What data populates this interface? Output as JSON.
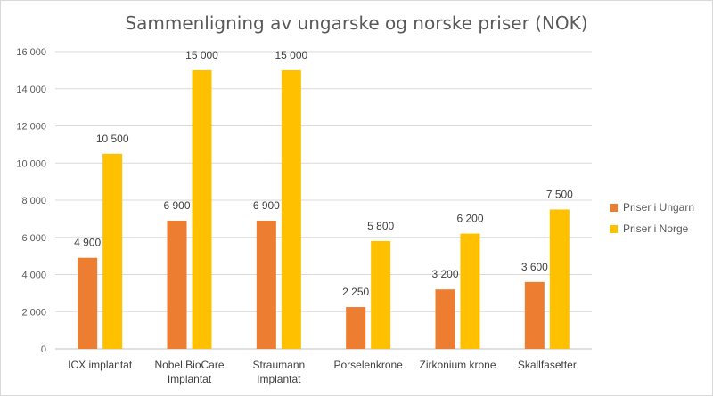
{
  "chart_data": {
    "type": "bar",
    "title": "Sammenligning av ungarske og norske priser (NOK)",
    "categories": [
      [
        "ICX implantat"
      ],
      [
        "Nobel BioCare",
        "Implantat"
      ],
      [
        "Straumann",
        "Implantat"
      ],
      [
        "Porselenkrone"
      ],
      [
        "Zirkonium krone"
      ],
      [
        "Skallfasetter"
      ]
    ],
    "series": [
      {
        "name": "Priser i Ungarn",
        "color": "#ed7d31",
        "values": [
          4900,
          6900,
          6900,
          2250,
          3200,
          3600
        ],
        "labels": [
          "4 900",
          "6 900",
          "6 900",
          "2 250",
          "3 200",
          "3 600"
        ]
      },
      {
        "name": "Priser i Norge",
        "color": "#ffc000",
        "values": [
          10500,
          15000,
          15000,
          5800,
          6200,
          7500
        ],
        "labels": [
          "10 500",
          "15 000",
          "15 000",
          "5 800",
          "6 200",
          "7 500"
        ]
      }
    ],
    "ylim": [
      0,
      16000
    ],
    "yticks": [
      0,
      2000,
      4000,
      6000,
      8000,
      10000,
      12000,
      14000,
      16000
    ],
    "ytick_labels": [
      "0",
      "2 000",
      "4 000",
      "6 000",
      "8 000",
      "10 000",
      "12 000",
      "14 000",
      "16 000"
    ],
    "grid": true,
    "legend_position": "right"
  }
}
